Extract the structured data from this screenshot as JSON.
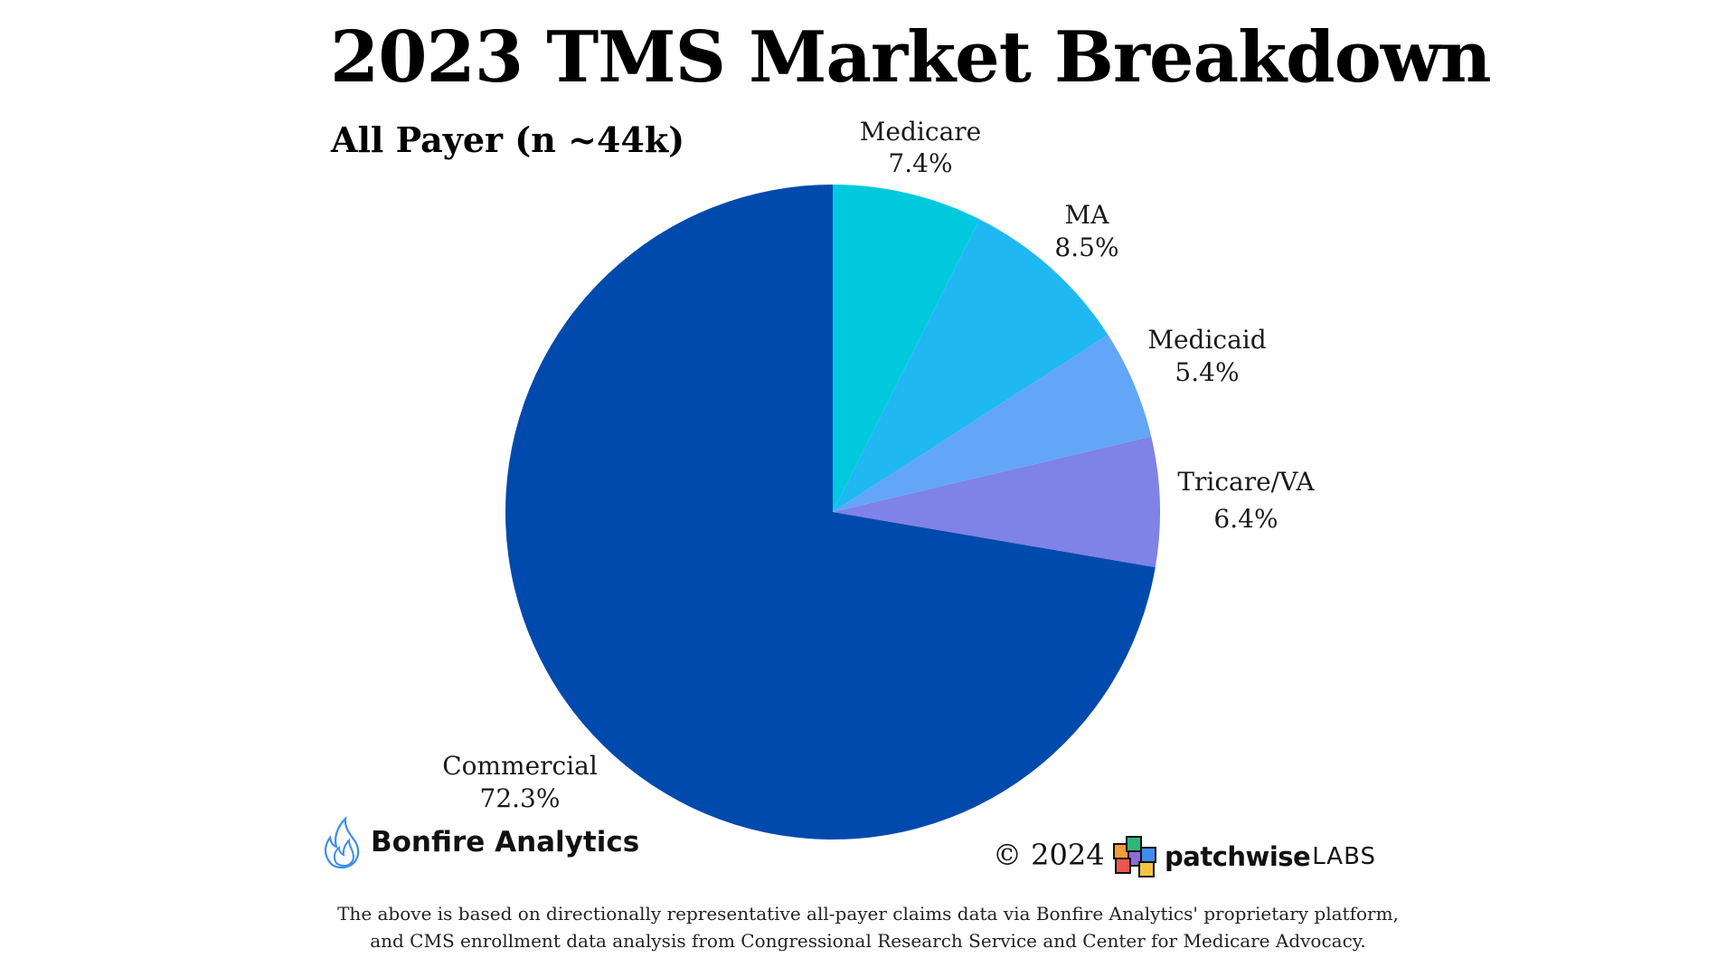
{
  "title": "2023 TMS Market Breakdown",
  "subtitle": "All Payer (n ~44k)",
  "chart_data": {
    "type": "pie",
    "title": "2023 TMS Market Breakdown",
    "subtitle": "All Payer (n ~44k)",
    "start_angle_deg": 0,
    "direction": "clockwise",
    "slices": [
      {
        "label": "Medicare",
        "value": 7.4,
        "display": "7.4%",
        "color": "#00C9DE"
      },
      {
        "label": "MA",
        "value": 8.5,
        "display": "8.5%",
        "color": "#1FB8F2"
      },
      {
        "label": "Medicaid",
        "value": 5.4,
        "display": "5.4%",
        "color": "#63A6F8"
      },
      {
        "label": "Tricare/VA",
        "value": 6.4,
        "display": "6.4%",
        "color": "#7F82E6"
      },
      {
        "label": "Commercial",
        "value": 72.3,
        "display": "72.3%",
        "color": "#004AAD"
      }
    ]
  },
  "footer": {
    "bonfire_name": "Bonfire Analytics",
    "copyright": "© 2024",
    "patchwise_name": "patchwise",
    "patchwise_suffix": "LABS",
    "note_line1": "The above is based on directionally representative all-payer claims data via Bonfire Analytics' proprietary platform,",
    "note_line2": "and CMS enrollment data analysis from Congressional Research Service and Center for Medicare Advocacy."
  },
  "colors": {
    "flame_stroke": "#3B8EEA",
    "cube_orange": "#F39C3C",
    "cube_green": "#2FB67A",
    "cube_purple": "#8E6BD8",
    "cube_red": "#E9574F",
    "cube_blue": "#3F8DF0",
    "cube_yellow": "#F4C542"
  }
}
